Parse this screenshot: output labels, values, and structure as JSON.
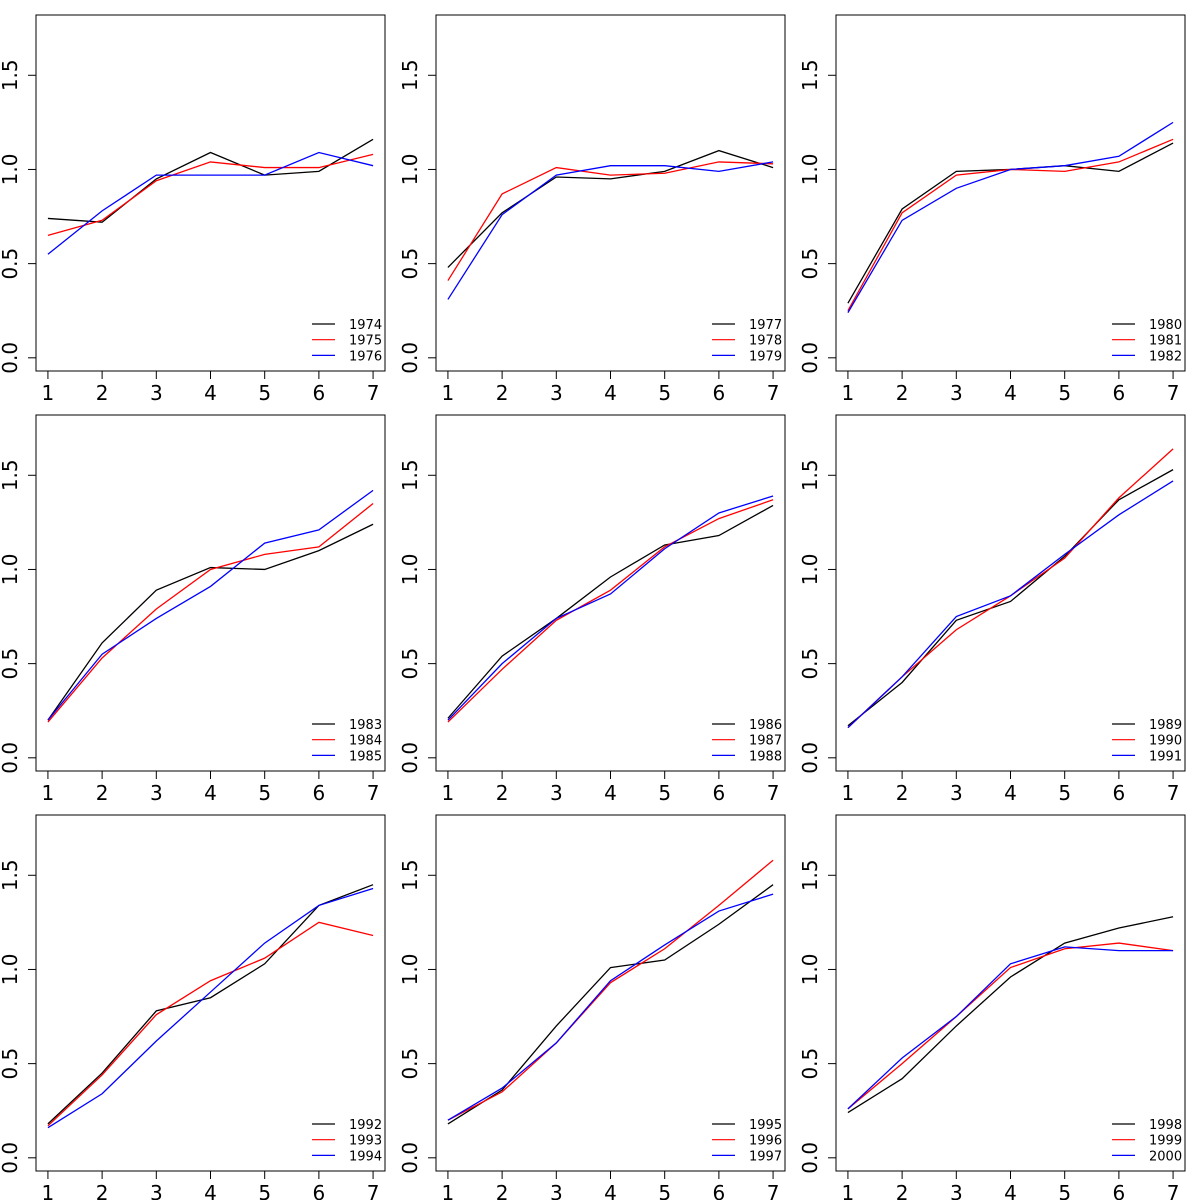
{
  "chart_data": [
    {
      "type": "line",
      "x": [
        1,
        2,
        3,
        4,
        5,
        6,
        7
      ],
      "xlim": [
        0.78,
        7.22
      ],
      "ylim": [
        -0.07,
        1.82
      ],
      "x_ticks": [
        "1",
        "2",
        "3",
        "4",
        "5",
        "6",
        "7"
      ],
      "y_ticks": [
        "0.0",
        "0.5",
        "1.0",
        "1.5"
      ],
      "legend_position": "bottom-right",
      "series": [
        {
          "name": "1974",
          "color": "#000000",
          "values": [
            0.74,
            0.72,
            0.95,
            1.09,
            0.97,
            0.99,
            1.16
          ]
        },
        {
          "name": "1975",
          "color": "#ff0000",
          "values": [
            0.65,
            0.73,
            0.94,
            1.04,
            1.01,
            1.01,
            1.08
          ]
        },
        {
          "name": "1976",
          "color": "#0000ff",
          "values": [
            0.55,
            0.78,
            0.97,
            0.97,
            0.97,
            1.09,
            1.02
          ]
        }
      ]
    },
    {
      "type": "line",
      "x": [
        1,
        2,
        3,
        4,
        5,
        6,
        7
      ],
      "xlim": [
        0.78,
        7.22
      ],
      "ylim": [
        -0.07,
        1.82
      ],
      "x_ticks": [
        "1",
        "2",
        "3",
        "4",
        "5",
        "6",
        "7"
      ],
      "y_ticks": [
        "0.0",
        "0.5",
        "1.0",
        "1.5"
      ],
      "legend_position": "bottom-right",
      "series": [
        {
          "name": "1977",
          "color": "#000000",
          "values": [
            0.48,
            0.77,
            0.96,
            0.95,
            0.99,
            1.1,
            1.01
          ]
        },
        {
          "name": "1978",
          "color": "#ff0000",
          "values": [
            0.41,
            0.87,
            1.01,
            0.97,
            0.98,
            1.04,
            1.03
          ]
        },
        {
          "name": "1979",
          "color": "#0000ff",
          "values": [
            0.31,
            0.76,
            0.97,
            1.02,
            1.02,
            0.99,
            1.04
          ]
        }
      ]
    },
    {
      "type": "line",
      "x": [
        1,
        2,
        3,
        4,
        5,
        6,
        7
      ],
      "xlim": [
        0.78,
        7.22
      ],
      "ylim": [
        -0.07,
        1.82
      ],
      "x_ticks": [
        "1",
        "2",
        "3",
        "4",
        "5",
        "6",
        "7"
      ],
      "y_ticks": [
        "0.0",
        "0.5",
        "1.0",
        "1.5"
      ],
      "legend_position": "bottom-right",
      "series": [
        {
          "name": "1980",
          "color": "#000000",
          "values": [
            0.29,
            0.79,
            0.99,
            1.0,
            1.02,
            0.99,
            1.14
          ]
        },
        {
          "name": "1981",
          "color": "#ff0000",
          "values": [
            0.25,
            0.77,
            0.97,
            1.0,
            0.99,
            1.04,
            1.16
          ]
        },
        {
          "name": "1982",
          "color": "#0000ff",
          "values": [
            0.24,
            0.73,
            0.9,
            1.0,
            1.02,
            1.07,
            1.25
          ]
        }
      ]
    },
    {
      "type": "line",
      "x": [
        1,
        2,
        3,
        4,
        5,
        6,
        7
      ],
      "xlim": [
        0.78,
        7.22
      ],
      "ylim": [
        -0.07,
        1.82
      ],
      "x_ticks": [
        "1",
        "2",
        "3",
        "4",
        "5",
        "6",
        "7"
      ],
      "y_ticks": [
        "0.0",
        "0.5",
        "1.0",
        "1.5"
      ],
      "legend_position": "bottom-right",
      "series": [
        {
          "name": "1983",
          "color": "#000000",
          "values": [
            0.2,
            0.61,
            0.89,
            1.01,
            1.0,
            1.1,
            1.24
          ]
        },
        {
          "name": "1984",
          "color": "#ff0000",
          "values": [
            0.19,
            0.53,
            0.79,
            1.0,
            1.08,
            1.12,
            1.35
          ]
        },
        {
          "name": "1985",
          "color": "#0000ff",
          "values": [
            0.2,
            0.55,
            0.74,
            0.91,
            1.14,
            1.21,
            1.42
          ]
        }
      ]
    },
    {
      "type": "line",
      "x": [
        1,
        2,
        3,
        4,
        5,
        6,
        7
      ],
      "xlim": [
        0.78,
        7.22
      ],
      "ylim": [
        -0.07,
        1.82
      ],
      "x_ticks": [
        "1",
        "2",
        "3",
        "4",
        "5",
        "6",
        "7"
      ],
      "y_ticks": [
        "0.0",
        "0.5",
        "1.0",
        "1.5"
      ],
      "legend_position": "bottom-right",
      "series": [
        {
          "name": "1986",
          "color": "#000000",
          "values": [
            0.21,
            0.54,
            0.74,
            0.96,
            1.13,
            1.18,
            1.34
          ]
        },
        {
          "name": "1987",
          "color": "#ff0000",
          "values": [
            0.19,
            0.47,
            0.73,
            0.89,
            1.12,
            1.27,
            1.37
          ]
        },
        {
          "name": "1988",
          "color": "#0000ff",
          "values": [
            0.2,
            0.5,
            0.74,
            0.87,
            1.11,
            1.3,
            1.39
          ]
        }
      ]
    },
    {
      "type": "line",
      "x": [
        1,
        2,
        3,
        4,
        5,
        6,
        7
      ],
      "xlim": [
        0.78,
        7.22
      ],
      "ylim": [
        -0.07,
        1.82
      ],
      "x_ticks": [
        "1",
        "2",
        "3",
        "4",
        "5",
        "6",
        "7"
      ],
      "y_ticks": [
        "0.0",
        "0.5",
        "1.0",
        "1.5"
      ],
      "legend_position": "bottom-right",
      "series": [
        {
          "name": "1989",
          "color": "#000000",
          "values": [
            0.17,
            0.4,
            0.73,
            0.83,
            1.07,
            1.37,
            1.53
          ]
        },
        {
          "name": "1990",
          "color": "#ff0000",
          "values": [
            0.16,
            0.43,
            0.68,
            0.86,
            1.06,
            1.38,
            1.64
          ]
        },
        {
          "name": "1991",
          "color": "#0000ff",
          "values": [
            0.16,
            0.43,
            0.75,
            0.86,
            1.08,
            1.29,
            1.47
          ]
        }
      ]
    },
    {
      "type": "line",
      "x": [
        1,
        2,
        3,
        4,
        5,
        6,
        7
      ],
      "xlim": [
        0.78,
        7.22
      ],
      "ylim": [
        -0.07,
        1.82
      ],
      "x_ticks": [
        "1",
        "2",
        "3",
        "4",
        "5",
        "6",
        "7"
      ],
      "y_ticks": [
        "0.0",
        "0.5",
        "1.0",
        "1.5"
      ],
      "legend_position": "bottom-right",
      "series": [
        {
          "name": "1992",
          "color": "#000000",
          "values": [
            0.18,
            0.45,
            0.78,
            0.85,
            1.03,
            1.34,
            1.45
          ]
        },
        {
          "name": "1993",
          "color": "#ff0000",
          "values": [
            0.17,
            0.44,
            0.76,
            0.94,
            1.06,
            1.25,
            1.18
          ]
        },
        {
          "name": "1994",
          "color": "#0000ff",
          "values": [
            0.16,
            0.34,
            0.62,
            0.88,
            1.14,
            1.34,
            1.43
          ]
        }
      ]
    },
    {
      "type": "line",
      "x": [
        1,
        2,
        3,
        4,
        5,
        6,
        7
      ],
      "xlim": [
        0.78,
        7.22
      ],
      "ylim": [
        -0.07,
        1.82
      ],
      "x_ticks": [
        "1",
        "2",
        "3",
        "4",
        "5",
        "6",
        "7"
      ],
      "y_ticks": [
        "0.0",
        "0.5",
        "1.0",
        "1.5"
      ],
      "legend_position": "bottom-right",
      "series": [
        {
          "name": "1995",
          "color": "#000000",
          "values": [
            0.18,
            0.36,
            0.7,
            1.01,
            1.05,
            1.24,
            1.45
          ]
        },
        {
          "name": "1996",
          "color": "#ff0000",
          "values": [
            0.2,
            0.35,
            0.61,
            0.93,
            1.11,
            1.34,
            1.58
          ]
        },
        {
          "name": "1997",
          "color": "#0000ff",
          "values": [
            0.2,
            0.37,
            0.61,
            0.94,
            1.13,
            1.31,
            1.4
          ]
        }
      ]
    },
    {
      "type": "line",
      "x": [
        1,
        2,
        3,
        4,
        5,
        6,
        7
      ],
      "xlim": [
        0.78,
        7.22
      ],
      "ylim": [
        -0.07,
        1.82
      ],
      "x_ticks": [
        "1",
        "2",
        "3",
        "4",
        "5",
        "6",
        "7"
      ],
      "y_ticks": [
        "0.0",
        "0.5",
        "1.0",
        "1.5"
      ],
      "legend_position": "bottom-right",
      "series": [
        {
          "name": "1998",
          "color": "#000000",
          "values": [
            0.24,
            0.42,
            0.7,
            0.96,
            1.14,
            1.22,
            1.28
          ]
        },
        {
          "name": "1999",
          "color": "#ff0000",
          "values": [
            0.26,
            0.5,
            0.75,
            1.01,
            1.11,
            1.14,
            1.1
          ]
        },
        {
          "name": "2000",
          "color": "#0000ff",
          "values": [
            0.26,
            0.53,
            0.75,
            1.03,
            1.12,
            1.1,
            1.1
          ]
        }
      ]
    }
  ]
}
